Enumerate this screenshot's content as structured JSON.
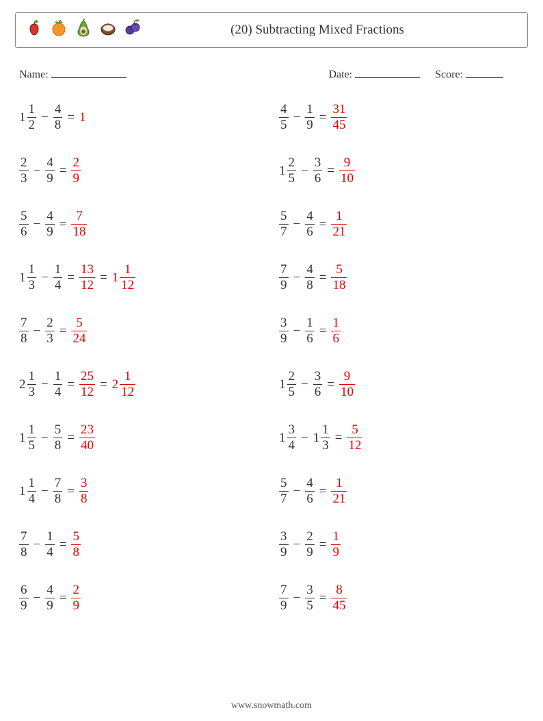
{
  "header": {
    "title": "(20) Subtracting Mixed Fractions",
    "fruits": [
      "apple",
      "orange",
      "avocado",
      "coconut",
      "blueberry"
    ]
  },
  "info": {
    "name_label": "Name:",
    "date_label": "Date:",
    "score_label": "Score:"
  },
  "footer": "www.snowmath.com",
  "colors": {
    "answer": "#e40000",
    "text": "#333333",
    "border": "#888888",
    "background": "#ffffff"
  },
  "typography": {
    "body_fontsize_pt": 14,
    "title_fontsize_pt": 14,
    "font_family": "serif"
  },
  "problems": {
    "left": [
      {
        "a": {
          "w": "1",
          "n": "1",
          "d": "2"
        },
        "b": {
          "n": "4",
          "d": "8"
        },
        "ans": {
          "simple": "1"
        }
      },
      {
        "a": {
          "n": "2",
          "d": "3"
        },
        "b": {
          "n": "4",
          "d": "9"
        },
        "ans": {
          "n": "2",
          "d": "9"
        }
      },
      {
        "a": {
          "n": "5",
          "d": "6"
        },
        "b": {
          "n": "4",
          "d": "9"
        },
        "ans": {
          "n": "7",
          "d": "18"
        }
      },
      {
        "a": {
          "w": "1",
          "n": "1",
          "d": "3"
        },
        "b": {
          "n": "1",
          "d": "4"
        },
        "ans": {
          "n": "13",
          "d": "12"
        },
        "ans2": {
          "w": "1",
          "n": "1",
          "d": "12"
        }
      },
      {
        "a": {
          "n": "7",
          "d": "8"
        },
        "b": {
          "n": "2",
          "d": "3"
        },
        "ans": {
          "n": "5",
          "d": "24"
        }
      },
      {
        "a": {
          "w": "2",
          "n": "1",
          "d": "3"
        },
        "b": {
          "n": "1",
          "d": "4"
        },
        "ans": {
          "n": "25",
          "d": "12"
        },
        "ans2": {
          "w": "2",
          "n": "1",
          "d": "12"
        }
      },
      {
        "a": {
          "w": "1",
          "n": "1",
          "d": "5"
        },
        "b": {
          "n": "5",
          "d": "8"
        },
        "ans": {
          "n": "23",
          "d": "40"
        }
      },
      {
        "a": {
          "w": "1",
          "n": "1",
          "d": "4"
        },
        "b": {
          "n": "7",
          "d": "8"
        },
        "ans": {
          "n": "3",
          "d": "8"
        }
      },
      {
        "a": {
          "n": "7",
          "d": "8"
        },
        "b": {
          "n": "1",
          "d": "4"
        },
        "ans": {
          "n": "5",
          "d": "8"
        }
      },
      {
        "a": {
          "n": "6",
          "d": "9"
        },
        "b": {
          "n": "4",
          "d": "9"
        },
        "ans": {
          "n": "2",
          "d": "9"
        }
      }
    ],
    "right": [
      {
        "a": {
          "n": "4",
          "d": "5"
        },
        "b": {
          "n": "1",
          "d": "9"
        },
        "ans": {
          "n": "31",
          "d": "45"
        }
      },
      {
        "a": {
          "w": "1",
          "n": "2",
          "d": "5"
        },
        "b": {
          "n": "3",
          "d": "6"
        },
        "ans": {
          "n": "9",
          "d": "10"
        }
      },
      {
        "a": {
          "n": "5",
          "d": "7"
        },
        "b": {
          "n": "4",
          "d": "6"
        },
        "ans": {
          "n": "1",
          "d": "21"
        }
      },
      {
        "a": {
          "n": "7",
          "d": "9"
        },
        "b": {
          "n": "4",
          "d": "8"
        },
        "ans": {
          "n": "5",
          "d": "18"
        }
      },
      {
        "a": {
          "n": "3",
          "d": "9"
        },
        "b": {
          "n": "1",
          "d": "6"
        },
        "ans": {
          "n": "1",
          "d": "6"
        }
      },
      {
        "a": {
          "w": "1",
          "n": "2",
          "d": "5"
        },
        "b": {
          "n": "3",
          "d": "6"
        },
        "ans": {
          "n": "9",
          "d": "10"
        }
      },
      {
        "a": {
          "w": "1",
          "n": "3",
          "d": "4"
        },
        "b": {
          "w": "1",
          "n": "1",
          "d": "3"
        },
        "ans": {
          "n": "5",
          "d": "12"
        }
      },
      {
        "a": {
          "n": "5",
          "d": "7"
        },
        "b": {
          "n": "4",
          "d": "6"
        },
        "ans": {
          "n": "1",
          "d": "21"
        }
      },
      {
        "a": {
          "n": "3",
          "d": "9"
        },
        "b": {
          "n": "2",
          "d": "9"
        },
        "ans": {
          "n": "1",
          "d": "9"
        }
      },
      {
        "a": {
          "n": "7",
          "d": "9"
        },
        "b": {
          "n": "3",
          "d": "5"
        },
        "ans": {
          "n": "8",
          "d": "45"
        }
      }
    ]
  }
}
